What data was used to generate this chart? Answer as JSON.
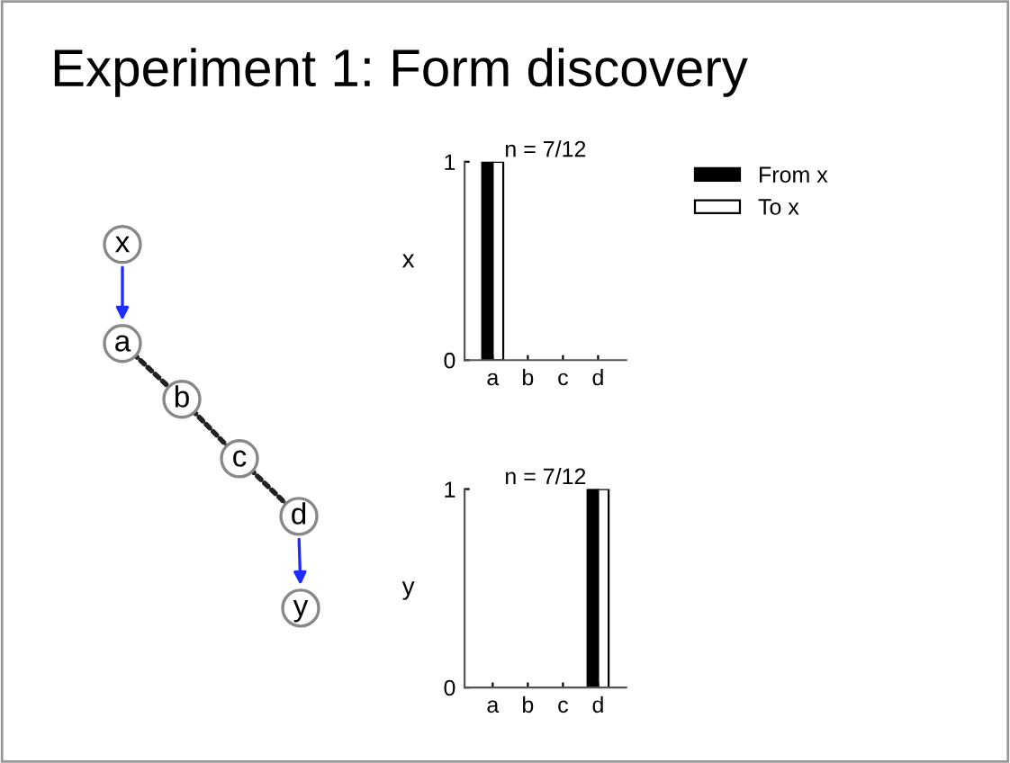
{
  "chart_data": [
    {
      "type": "other",
      "title": "Experiment 1: Form discovery",
      "annotations": [
        "x",
        "a",
        "b",
        "c",
        "d",
        "y"
      ]
    },
    {
      "type": "bar",
      "title": "n = 7/12",
      "ylabel": "x",
      "categories": [
        "a",
        "b",
        "c",
        "d"
      ],
      "ylim": [
        0,
        1
      ],
      "yticks": [
        0,
        1
      ],
      "legend": "top right",
      "series": [
        {
          "name": "From x",
          "color": "#000000",
          "values": [
            1,
            0,
            0,
            0
          ]
        },
        {
          "name": "To x",
          "color": "#ffffff",
          "values": [
            1,
            0,
            0,
            0
          ]
        }
      ]
    },
    {
      "type": "bar",
      "title": "n = 7/12",
      "ylabel": "y",
      "categories": [
        "a",
        "b",
        "c",
        "d"
      ],
      "ylim": [
        0,
        1
      ],
      "yticks": [
        0,
        1
      ],
      "series": [
        {
          "color": "#000000",
          "values": [
            0,
            0,
            0,
            1
          ]
        },
        {
          "color": "#ffffff",
          "values": [
            0,
            0,
            0,
            1
          ]
        }
      ]
    }
  ]
}
